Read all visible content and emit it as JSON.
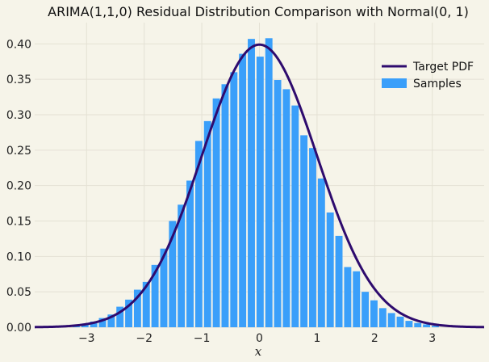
{
  "chart_data": {
    "type": "bar",
    "title": "ARIMA(1,1,0) Residual Distribution Comparison with Normal(0, 1)",
    "xlabel": "x",
    "ylabel": "",
    "xlim": [
      -3.9,
      3.9
    ],
    "ylim": [
      0,
      0.43
    ],
    "xticks": [
      -3,
      -2,
      -1,
      0,
      1,
      2,
      3
    ],
    "xtick_labels": [
      "−3",
      "−2",
      "−1",
      "0",
      "1",
      "2",
      "3"
    ],
    "yticks": [
      0,
      0.05,
      0.1,
      0.15,
      0.2,
      0.25,
      0.3,
      0.35,
      0.4
    ],
    "ytick_labels": [
      "0.00",
      "0.05",
      "0.10",
      "0.15",
      "0.20",
      "0.25",
      "0.30",
      "0.35",
      "0.40"
    ],
    "grid": true,
    "legend_position": "top-right",
    "series": [
      {
        "name": "Samples",
        "kind": "histogram",
        "color": "#3a9ffa",
        "bin_width": 0.152,
        "bin_centers": [
          -3.18,
          -3.028,
          -2.876,
          -2.724,
          -2.572,
          -2.42,
          -2.268,
          -2.116,
          -1.964,
          -1.812,
          -1.66,
          -1.508,
          -1.356,
          -1.204,
          -1.052,
          -0.9,
          -0.748,
          -0.596,
          -0.444,
          -0.292,
          -0.14,
          0.012,
          0.164,
          0.316,
          0.468,
          0.62,
          0.772,
          0.924,
          1.076,
          1.228,
          1.38,
          1.532,
          1.684,
          1.836,
          1.988,
          2.14,
          2.292,
          2.444,
          2.596,
          2.748,
          2.9,
          3.052
        ],
        "values": [
          0.003,
          0.005,
          0.008,
          0.013,
          0.018,
          0.029,
          0.039,
          0.053,
          0.064,
          0.088,
          0.111,
          0.15,
          0.173,
          0.207,
          0.263,
          0.291,
          0.323,
          0.343,
          0.36,
          0.386,
          0.407,
          0.382,
          0.408,
          0.349,
          0.336,
          0.313,
          0.271,
          0.253,
          0.21,
          0.162,
          0.129,
          0.085,
          0.079,
          0.05,
          0.038,
          0.027,
          0.02,
          0.015,
          0.009,
          0.006,
          0.004,
          0.002
        ]
      },
      {
        "name": "Target PDF",
        "kind": "line",
        "function": "normal_pdf",
        "mean": 0,
        "std": 1,
        "color": "#2e0b6e"
      }
    ]
  }
}
